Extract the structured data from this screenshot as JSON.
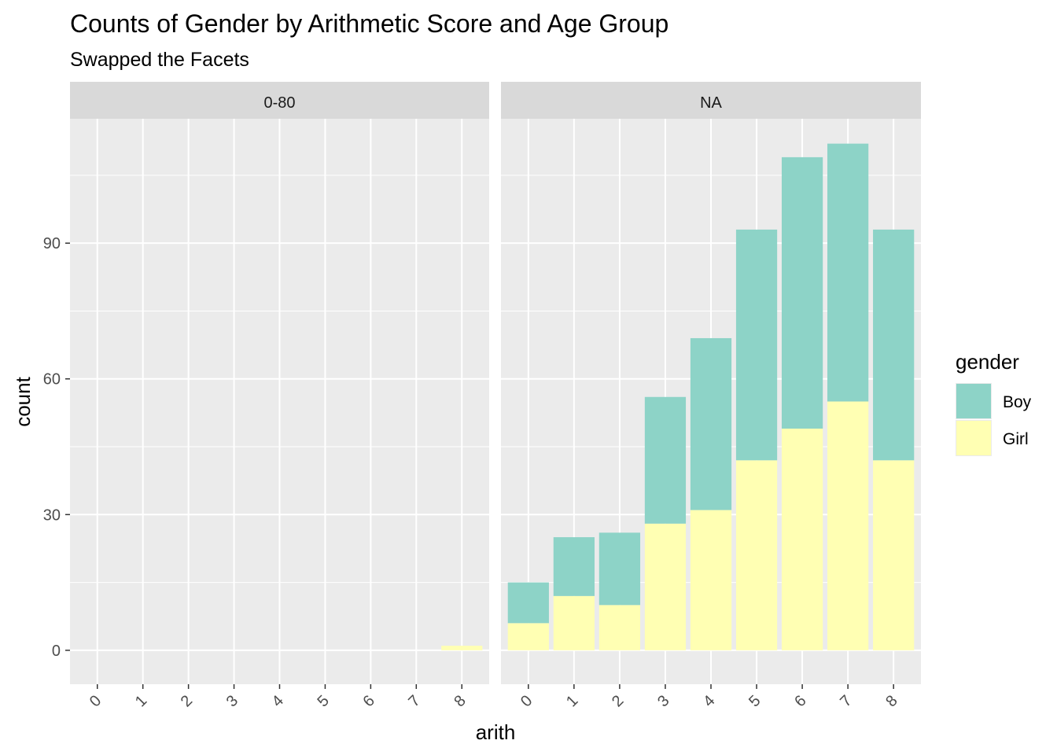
{
  "chart_data": {
    "type": "bar",
    "stacked": true,
    "title": "Counts of Gender by Arithmetic Score and Age Group",
    "subtitle": "Swapped the Facets",
    "xlabel": "arith",
    "ylabel": "count",
    "ylim": [
      -7.5,
      117.5
    ],
    "y_ticks": [
      0,
      30,
      60,
      90
    ],
    "y_tick_labels": [
      "0",
      "30",
      "60",
      "90"
    ],
    "categories": [
      "0",
      "1",
      "2",
      "3",
      "4",
      "5",
      "6",
      "7",
      "8"
    ],
    "grid": true,
    "facets": [
      {
        "label": "0-80",
        "series": [
          {
            "name": "Boy",
            "values": [
              0,
              0,
              0,
              0,
              0,
              0,
              0,
              0,
              0
            ]
          },
          {
            "name": "Girl",
            "values": [
              0,
              0,
              0,
              0,
              0,
              0,
              0,
              0,
              1
            ]
          }
        ]
      },
      {
        "label": "NA",
        "series": [
          {
            "name": "Boy",
            "values": [
              9,
              13,
              16,
              28,
              38,
              51,
              60,
              57,
              51
            ]
          },
          {
            "name": "Girl",
            "values": [
              6,
              12,
              10,
              28,
              31,
              42,
              49,
              55,
              42
            ]
          }
        ]
      }
    ],
    "legend": {
      "title": "gender",
      "position": "right",
      "items": [
        {
          "label": "Boy",
          "color": "#8DD3C7"
        },
        {
          "label": "Girl",
          "color": "#FFFFB3"
        }
      ]
    },
    "colors": {
      "Boy": "#8DD3C7",
      "Girl": "#FFFFB3",
      "panel_background": "#EBEBEB",
      "strip_background": "#D9D9D9",
      "grid": "#FFFFFF"
    }
  }
}
